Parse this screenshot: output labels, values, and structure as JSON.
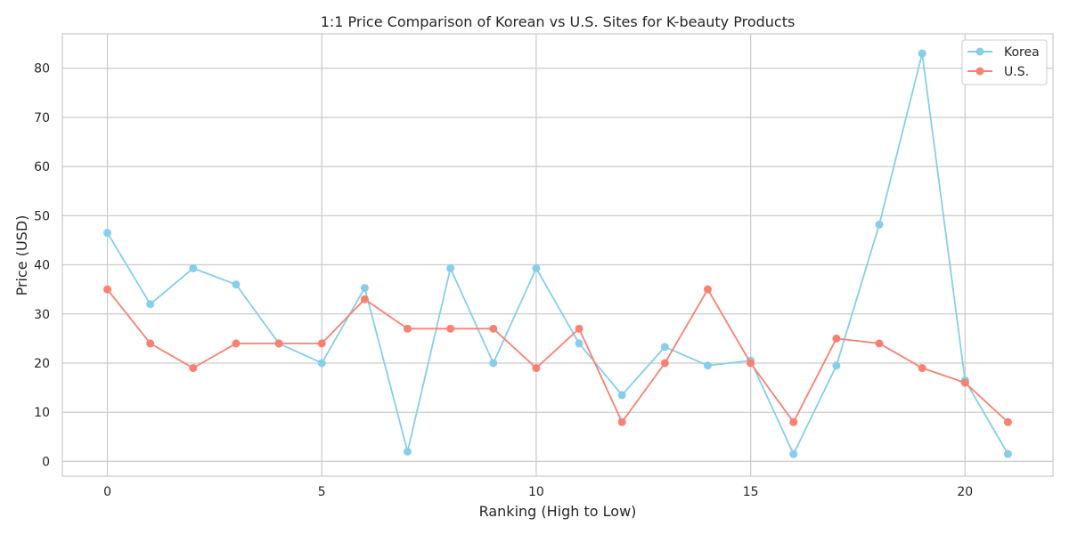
{
  "chart_data": {
    "type": "line",
    "title": "1:1 Price Comparison of Korean vs U.S. Sites for K-beauty Products",
    "xlabel": "Ranking (High to Low)",
    "ylabel": "Price (USD)",
    "x": [
      0,
      1,
      2,
      3,
      4,
      5,
      6,
      7,
      8,
      9,
      10,
      11,
      12,
      13,
      14,
      15,
      16,
      17,
      18,
      19,
      20,
      21
    ],
    "xlim": [
      -1.05,
      22.05
    ],
    "ylim": [
      -3,
      87
    ],
    "xticks": [
      0,
      5,
      10,
      15,
      20
    ],
    "yticks": [
      0,
      10,
      20,
      30,
      40,
      50,
      60,
      70,
      80
    ],
    "grid": true,
    "legend_position": "top-right",
    "series": [
      {
        "name": "Korea",
        "color": "#87ceeb",
        "values": [
          46.5,
          32,
          39.3,
          36,
          24,
          20,
          35.3,
          2,
          39.3,
          20,
          39.3,
          24,
          13.5,
          23.3,
          19.5,
          20.5,
          1.5,
          19.5,
          48.2,
          83,
          16.5,
          1.5
        ]
      },
      {
        "name": "U.S.",
        "color": "#fa8072",
        "values": [
          35,
          24,
          19,
          24,
          24,
          24,
          33,
          27,
          27,
          27,
          19,
          27,
          8,
          20,
          35,
          20,
          8,
          25,
          24,
          19,
          16,
          8
        ]
      }
    ]
  }
}
